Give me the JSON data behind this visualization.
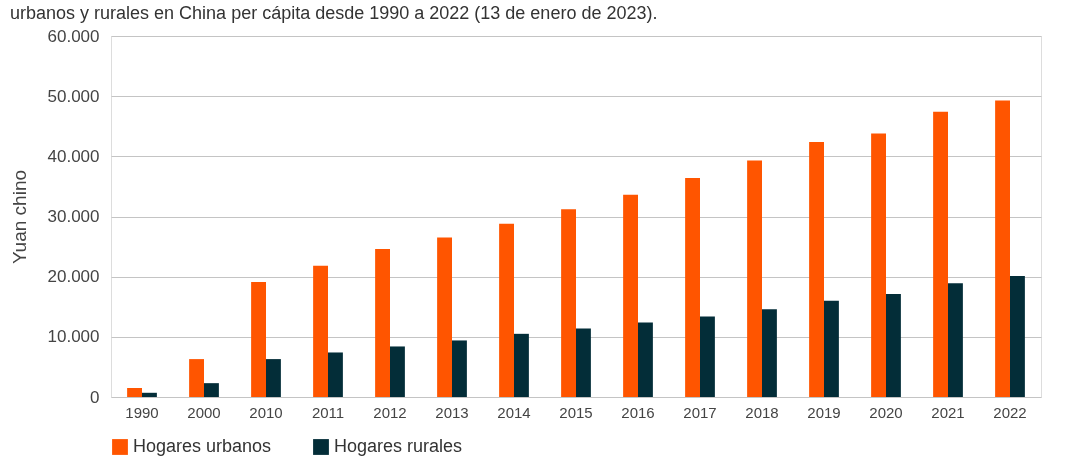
{
  "chart_data": {
    "type": "bar",
    "title": "urbanos y rurales en China per cápita desde 1990 a 2022 (13 de enero de 2023).",
    "ylabel": "Yuan chino",
    "categories": [
      "1990",
      "2000",
      "2010",
      "2011",
      "2012",
      "2013",
      "2014",
      "2015",
      "2016",
      "2017",
      "2018",
      "2019",
      "2020",
      "2021",
      "2022"
    ],
    "series": [
      {
        "name": "Hogares urbanos",
        "color": "#ff5500",
        "values": [
          1500,
          6300,
          19100,
          21800,
          24600,
          26500,
          28800,
          31200,
          33600,
          36400,
          39300,
          42400,
          43800,
          47400,
          49300
        ]
      },
      {
        "name": "Hogares rurales",
        "color": "#032d38",
        "values": [
          700,
          2300,
          6300,
          7400,
          8400,
          9400,
          10500,
          11400,
          12400,
          13400,
          14600,
          16000,
          17100,
          18900,
          20100
        ]
      }
    ],
    "ylim": [
      0,
      60000
    ],
    "yticks": [
      0,
      {
        "value": 10000,
        "label": "10.000"
      },
      {
        "value": 20000,
        "label": "20.000"
      },
      {
        "value": 30000,
        "label": "30.000"
      },
      {
        "value": 40000,
        "label": "40.000"
      },
      {
        "value": 50000,
        "label": "50.000"
      },
      {
        "value": 60000,
        "label": "60.000"
      }
    ],
    "grid": "y",
    "legend": "bottom"
  }
}
